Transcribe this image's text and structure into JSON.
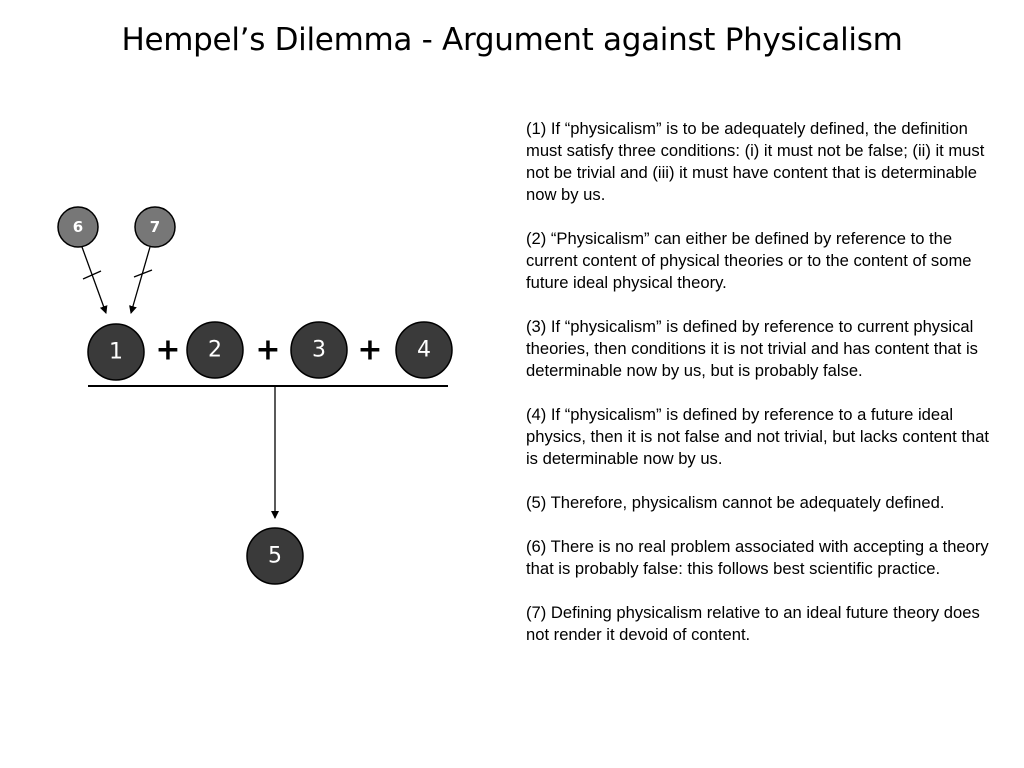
{
  "title": "Hempel’s Dilemma - Argument against Physicalism",
  "diagram": {
    "nodes": {
      "n1": "1",
      "n2": "2",
      "n3": "3",
      "n4": "4",
      "n5": "5",
      "n6": "6",
      "n7": "7"
    },
    "operator": "+"
  },
  "premises": [
    "(1) If “physicalism” is to be adequately defined, the definition must satisfy three conditions: (i) it must not be false; (ii) it must not be trivial and (iii) it must have content that is determinable now by us.",
    "(2) “Physicalism” can either be defined by reference to the current content of physical theories or to the content of some future ideal physical theory.",
    "(3) If “physicalism” is defined by reference to current physical theories, then conditions it is not trivial and has content that is determinable now by us, but is probably false.",
    "(4) If “physicalism” is defined by reference to a future ideal physics, then it is not false and not trivial, but lacks content that is determinable now by us.",
    "(5) Therefore, physicalism cannot be adequately defined.",
    "(6) There is no real problem associated with accepting a theory that is probably false: this follows best scientific practice.",
    "(7) Defining physicalism relative to an ideal future theory does not render it devoid of content."
  ],
  "colors": {
    "main_node": "#3a3a3a",
    "objection_node": "#777777",
    "line": "#000000"
  }
}
